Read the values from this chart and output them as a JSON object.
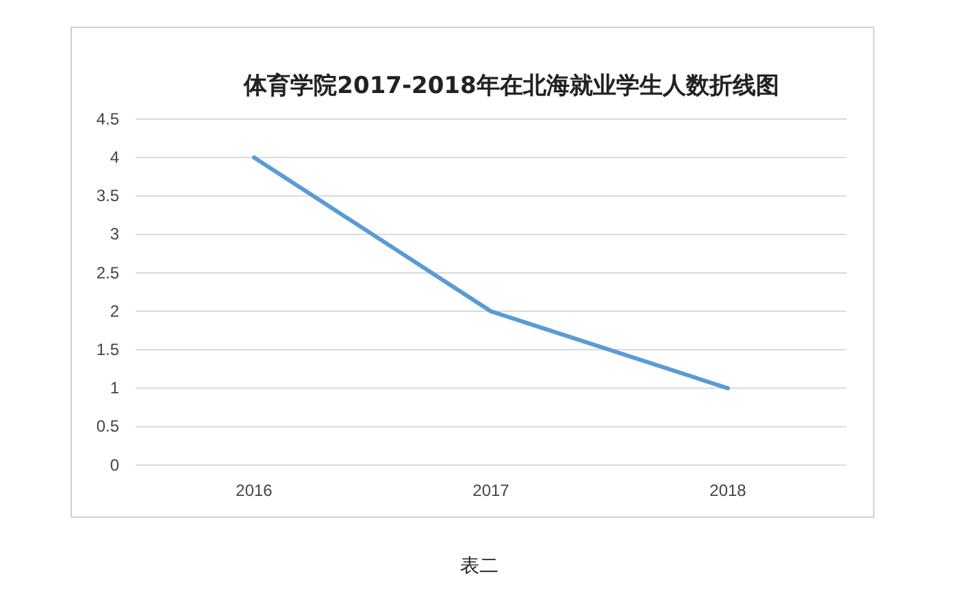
{
  "chart_data": {
    "type": "line",
    "title": "体育学院2017-2018年在北海就业学生人数折线图",
    "categories": [
      "2016",
      "2017",
      "2018"
    ],
    "series": [
      {
        "color": "#5b9bd5",
        "values": [
          4,
          2,
          1
        ]
      }
    ],
    "ylim": [
      0,
      4.5
    ],
    "yticks": [
      0,
      0.5,
      1,
      1.5,
      2,
      2.5,
      3,
      3.5,
      4,
      4.5
    ],
    "grid": "y",
    "marker": "none",
    "line_style": "solid",
    "annotations": [
      "表二"
    ]
  }
}
